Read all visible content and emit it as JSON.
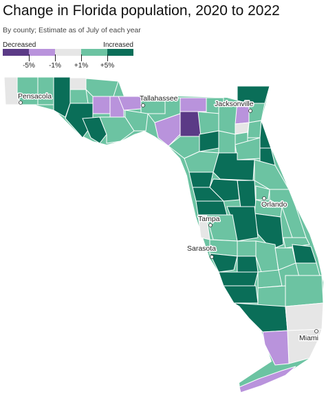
{
  "title": "Change in Florida population, 2020 to 2022",
  "subtitle": "By county; Estimate as of July of each year",
  "legend": {
    "decreased_label": "Decreased",
    "increased_label": "Increased",
    "tick_labels": [
      "-5%",
      "-1%",
      "+1%",
      "+5%"
    ],
    "bins": [
      {
        "range": "< -5%",
        "color": "#5b3a86"
      },
      {
        "range": "-5% to -1%",
        "color": "#b993dc"
      },
      {
        "range": "-1% to +1%",
        "color": "#e6e6e6"
      },
      {
        "range": "+1% to +5%",
        "color": "#6cc3a2"
      },
      {
        "range": "> +5%",
        "color": "#0a6e58"
      }
    ]
  },
  "cities": [
    "Pensacola",
    "Tallahassee",
    "Jacksonville",
    "Orlando",
    "Tampa",
    "Sarasota",
    "Miami"
  ]
}
